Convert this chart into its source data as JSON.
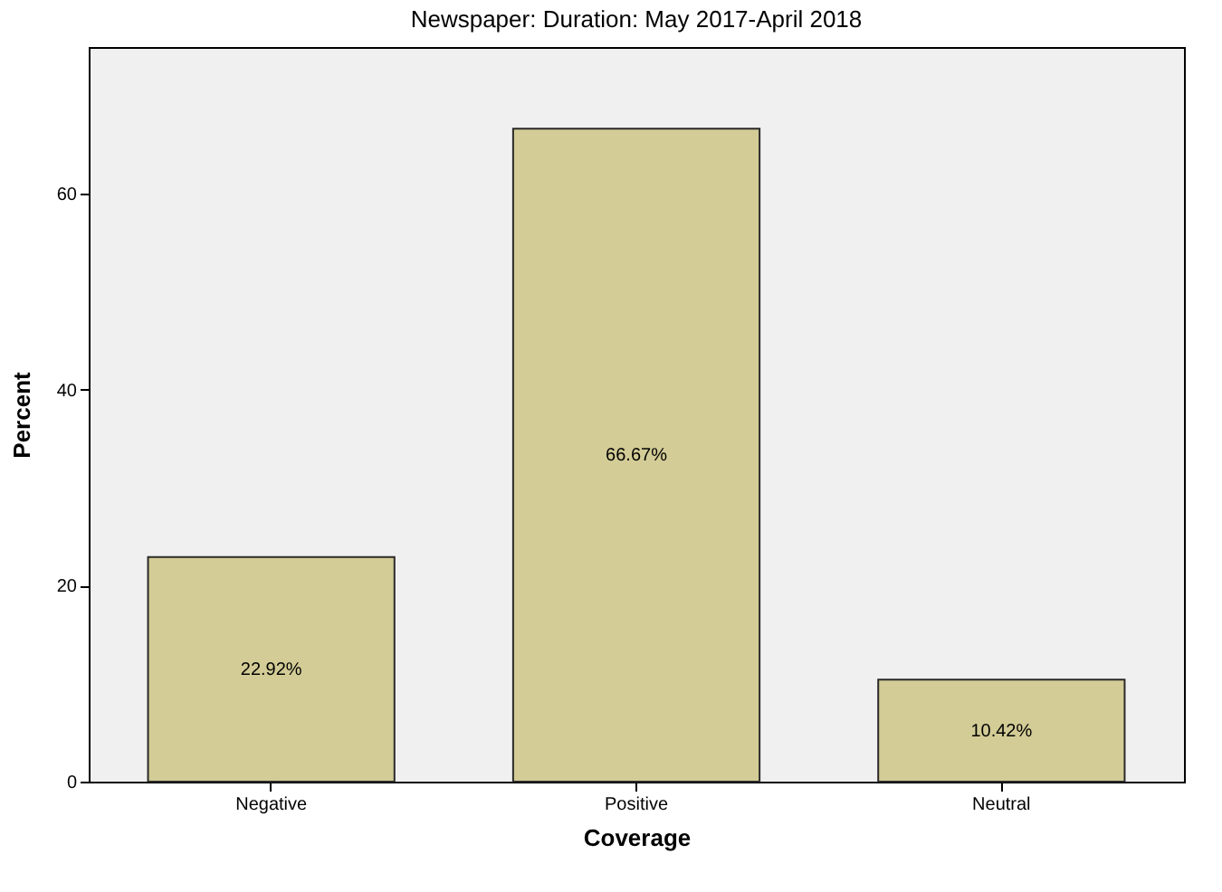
{
  "chart_data": {
    "type": "bar",
    "title": "Newspaper: Duration: May 2017-April 2018",
    "xlabel": "Coverage",
    "ylabel": "Percent",
    "categories": [
      "Negative",
      "Positive",
      "Neutral"
    ],
    "values": [
      22.92,
      66.67,
      10.42
    ],
    "value_labels": [
      "22.92%",
      "66.67%",
      "10.42%"
    ],
    "color": "#d3cc96",
    "ylim": [
      0,
      75
    ],
    "yticks": [
      0,
      20,
      40,
      60
    ],
    "grid": false
  }
}
